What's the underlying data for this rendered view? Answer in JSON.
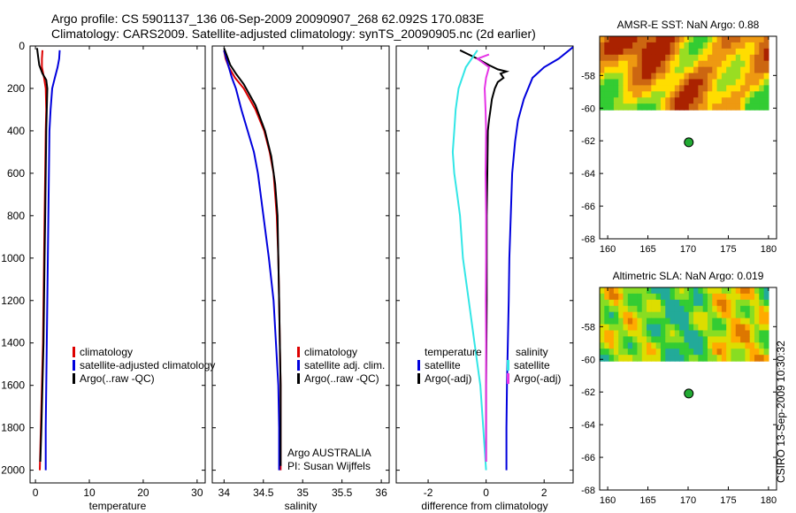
{
  "header": {
    "title_line1": "Argo profile: CS 5901137_136 06-Sep-2009 20090907_268 62.092S 170.083E",
    "title_line2": "Climatology: CARS2009. Satellite-adjusted climatology: synTS_20090905.nc (2d earlier)"
  },
  "footer": {
    "vertical_stamp": "CSIRO 13-Sep-2009 10:30:32",
    "agency": "Argo AUSTRALIA",
    "pi": "PI: Susan Wijffels"
  },
  "colors": {
    "climatology": "#dd0000",
    "satellite": "#0000dd",
    "argo": "#000000",
    "temp_diff_satellite": "#0000dd",
    "temp_diff_argo": "#000000",
    "sal_diff_satellite": "#33e6e6",
    "sal_diff_argo": "#e633e6",
    "marker": "#22aa33"
  },
  "chart_data": [
    {
      "id": "temperature",
      "type": "line",
      "xlabel": "temperature",
      "xlim": [
        -1,
        31.5
      ],
      "xticks": [
        0,
        10,
        20,
        30
      ],
      "ylim": [
        2060,
        0
      ],
      "yticks": [
        0,
        200,
        400,
        600,
        800,
        1000,
        1200,
        1400,
        1600,
        1800,
        2000
      ],
      "legend": {
        "placement": "lower-middle",
        "entries": [
          "climatology",
          "satellite-adjusted climatology",
          "Argo(..raw -QC)"
        ]
      },
      "series": [
        {
          "name": "climatology",
          "color_key": "climatology",
          "points": [
            [
              1.3,
              20
            ],
            [
              1.2,
              60
            ],
            [
              1.2,
              100
            ],
            [
              1.6,
              150
            ],
            [
              1.9,
              200
            ],
            [
              2.0,
              300
            ],
            [
              1.9,
              400
            ],
            [
              1.8,
              600
            ],
            [
              1.7,
              800
            ],
            [
              1.6,
              1000
            ],
            [
              1.5,
              1200
            ],
            [
              1.4,
              1400
            ],
            [
              1.2,
              1600
            ],
            [
              1.0,
              1800
            ],
            [
              0.8,
              2000
            ]
          ]
        },
        {
          "name": "satellite-adjusted climatology",
          "color_key": "satellite",
          "points": [
            [
              4.5,
              20
            ],
            [
              4.4,
              60
            ],
            [
              4.1,
              100
            ],
            [
              3.6,
              150
            ],
            [
              3.1,
              200
            ],
            [
              2.8,
              300
            ],
            [
              2.6,
              400
            ],
            [
              2.5,
              600
            ],
            [
              2.4,
              800
            ],
            [
              2.3,
              1000
            ],
            [
              2.2,
              1200
            ],
            [
              2.1,
              1400
            ],
            [
              2.0,
              1600
            ],
            [
              1.9,
              1800
            ],
            [
              1.9,
              2000
            ]
          ]
        },
        {
          "name": "Argo(..raw -QC)",
          "color_key": "argo",
          "points": [
            [
              0.3,
              10
            ],
            [
              0.5,
              50
            ],
            [
              0.7,
              90
            ],
            [
              1.3,
              130
            ],
            [
              2.0,
              160
            ],
            [
              2.2,
              200
            ],
            [
              2.1,
              300
            ],
            [
              2.0,
              400
            ],
            [
              1.9,
              600
            ],
            [
              1.8,
              800
            ],
            [
              1.7,
              1000
            ],
            [
              1.6,
              1200
            ],
            [
              1.5,
              1400
            ],
            [
              1.3,
              1600
            ],
            [
              1.1,
              1800
            ],
            [
              0.9,
              1960
            ]
          ]
        }
      ]
    },
    {
      "id": "salinity",
      "type": "line",
      "xlabel": "salinity",
      "xlim": [
        33.85,
        36.1
      ],
      "xticks": [
        34,
        34.5,
        35,
        35.5,
        36
      ],
      "ylim": [
        2060,
        0
      ],
      "yticks": [
        0,
        200,
        400,
        600,
        800,
        1000,
        1200,
        1400,
        1600,
        1800,
        2000
      ],
      "legend": {
        "placement": "lower-right",
        "entries": [
          "climatology",
          "satellite adj. clim.",
          "Argo(..raw -QC)"
        ]
      },
      "series": [
        {
          "name": "climatology",
          "color_key": "climatology",
          "points": [
            [
              34.0,
              20
            ],
            [
              34.02,
              60
            ],
            [
              34.06,
              100
            ],
            [
              34.14,
              150
            ],
            [
              34.25,
              200
            ],
            [
              34.4,
              300
            ],
            [
              34.51,
              400
            ],
            [
              34.58,
              500
            ],
            [
              34.63,
              600
            ],
            [
              34.67,
              800
            ],
            [
              34.69,
              1000
            ],
            [
              34.7,
              1200
            ],
            [
              34.71,
              1400
            ],
            [
              34.72,
              1600
            ],
            [
              34.72,
              1800
            ],
            [
              34.72,
              2000
            ]
          ]
        },
        {
          "name": "satellite adj. clim.",
          "color_key": "satellite",
          "points": [
            [
              34.0,
              20
            ],
            [
              34.03,
              60
            ],
            [
              34.06,
              100
            ],
            [
              34.1,
              150
            ],
            [
              34.15,
              200
            ],
            [
              34.22,
              300
            ],
            [
              34.3,
              400
            ],
            [
              34.38,
              500
            ],
            [
              34.43,
              600
            ],
            [
              34.5,
              800
            ],
            [
              34.57,
              1000
            ],
            [
              34.63,
              1200
            ],
            [
              34.66,
              1400
            ],
            [
              34.69,
              1600
            ],
            [
              34.7,
              1800
            ],
            [
              34.7,
              2000
            ]
          ]
        },
        {
          "name": "Argo(..raw -QC)",
          "color_key": "argo",
          "points": [
            [
              34.0,
              10
            ],
            [
              34.04,
              50
            ],
            [
              34.08,
              90
            ],
            [
              34.15,
              130
            ],
            [
              34.25,
              180
            ],
            [
              34.4,
              280
            ],
            [
              34.52,
              400
            ],
            [
              34.6,
              520
            ],
            [
              34.65,
              650
            ],
            [
              34.68,
              800
            ],
            [
              34.69,
              1000
            ],
            [
              34.7,
              1200
            ],
            [
              34.71,
              1400
            ],
            [
              34.72,
              1600
            ],
            [
              34.72,
              1800
            ],
            [
              34.72,
              1980
            ]
          ]
        }
      ]
    },
    {
      "id": "difference",
      "type": "line",
      "xlabel": "difference from climatology",
      "xlim": [
        -3.1,
        3
      ],
      "xticks": [
        -2,
        0,
        2
      ],
      "ylim": [
        2060,
        0
      ],
      "yticks": [
        0,
        200,
        400,
        600,
        800,
        1000,
        1200,
        1400,
        1600,
        1800,
        2000
      ],
      "legend": {
        "placement": "lower",
        "temp_header": "temperature",
        "sal_header": "salinity",
        "entries": [
          "satellite",
          "Argo(-adj)",
          "satellite",
          "Argo(-adj)"
        ]
      },
      "series": [
        {
          "name": "satellite",
          "group": "temperature",
          "color_key": "temp_diff_satellite",
          "points": [
            [
              3.0,
              5
            ],
            [
              2.5,
              60
            ],
            [
              2.0,
              100
            ],
            [
              1.6,
              150
            ],
            [
              1.3,
              250
            ],
            [
              1.1,
              350
            ],
            [
              1.0,
              450
            ],
            [
              0.9,
              600
            ],
            [
              0.85,
              800
            ],
            [
              0.8,
              1000
            ],
            [
              0.78,
              1200
            ],
            [
              0.75,
              1400
            ],
            [
              0.72,
              1600
            ],
            [
              0.7,
              1800
            ],
            [
              0.7,
              2000
            ]
          ]
        },
        {
          "name": "Argo(-adj)",
          "group": "temperature",
          "color_key": "temp_diff_argo",
          "points": [
            [
              -0.9,
              20
            ],
            [
              -0.6,
              40
            ],
            [
              -0.3,
              60
            ],
            [
              0.1,
              90
            ],
            [
              0.4,
              110
            ],
            [
              0.7,
              120
            ],
            [
              0.5,
              130
            ],
            [
              0.6,
              150
            ],
            [
              0.4,
              170
            ],
            [
              0.3,
              200
            ],
            [
              0.2,
              250
            ],
            [
              0.15,
              300
            ],
            [
              0.1,
              350
            ],
            [
              0.06,
              400
            ],
            [
              0.04,
              600
            ],
            [
              0.02,
              800
            ],
            [
              0.02,
              1000
            ],
            [
              0.02,
              1200
            ],
            [
              0.01,
              1400
            ],
            [
              0.0,
              1600
            ],
            [
              0.0,
              1800
            ],
            [
              0.0,
              1960
            ]
          ]
        },
        {
          "name": "satellite",
          "group": "salinity",
          "color_key": "sal_diff_satellite",
          "points": [
            [
              -0.3,
              20
            ],
            [
              -0.7,
              100
            ],
            [
              -0.95,
              200
            ],
            [
              -1.05,
              300
            ],
            [
              -1.1,
              400
            ],
            [
              -1.15,
              500
            ],
            [
              -1.1,
              600
            ],
            [
              -1.0,
              700
            ],
            [
              -0.9,
              800
            ],
            [
              -0.8,
              1000
            ],
            [
              -0.6,
              1200
            ],
            [
              -0.4,
              1400
            ],
            [
              -0.2,
              1600
            ],
            [
              -0.1,
              1800
            ],
            [
              0.0,
              2000
            ]
          ]
        },
        {
          "name": "Argo(-adj)",
          "group": "salinity",
          "color_key": "sal_diff_argo",
          "points": [
            [
              0.1,
              40
            ],
            [
              -0.3,
              60
            ],
            [
              -0.1,
              80
            ],
            [
              0.1,
              100
            ],
            [
              0.0,
              150
            ],
            [
              -0.05,
              200
            ],
            [
              -0.02,
              300
            ],
            [
              0.0,
              400
            ],
            [
              -0.02,
              600
            ],
            [
              0.0,
              800
            ],
            [
              0.0,
              1000
            ],
            [
              -0.01,
              1200
            ],
            [
              0.0,
              1400
            ],
            [
              0.0,
              1600
            ],
            [
              0.0,
              1800
            ],
            [
              0.0,
              1960
            ]
          ]
        }
      ]
    },
    {
      "id": "sst_map",
      "type": "heatmap",
      "title": "AMSR-E SST: NaN Argo: 0.88",
      "xlim": [
        159,
        181
      ],
      "xticks": [
        160,
        165,
        170,
        175,
        180
      ],
      "ylim": [
        -68,
        -55.6
      ],
      "yticks": [
        -58,
        -60,
        -62,
        -64,
        -66,
        -68
      ],
      "field_extent_lat": [
        -60.1,
        -55.6
      ],
      "field_extent_lon": [
        159,
        180
      ],
      "palette": [
        "#33cc33",
        "#99dd22",
        "#ffdd00",
        "#ee9911",
        "#cc6611",
        "#aa2200"
      ],
      "float_position": {
        "lon": 170.083,
        "lat": -62.092
      }
    },
    {
      "id": "sla_map",
      "type": "heatmap",
      "title": "Altimetric SLA: NaN Argo: 0.019",
      "xlim": [
        159,
        181
      ],
      "xticks": [
        160,
        165,
        170,
        175,
        180
      ],
      "ylim": [
        -68,
        -55.6
      ],
      "yticks": [
        -58,
        -60,
        -62,
        -64,
        -66,
        -68
      ],
      "field_extent_lat": [
        -60.1,
        -55.6
      ],
      "field_extent_lon": [
        159,
        180
      ],
      "palette": [
        "#22aa99",
        "#33cc33",
        "#88dd22",
        "#dddd00",
        "#ffaa00",
        "#dd7700"
      ],
      "float_position": {
        "lon": 170.083,
        "lat": -62.092
      }
    }
  ]
}
